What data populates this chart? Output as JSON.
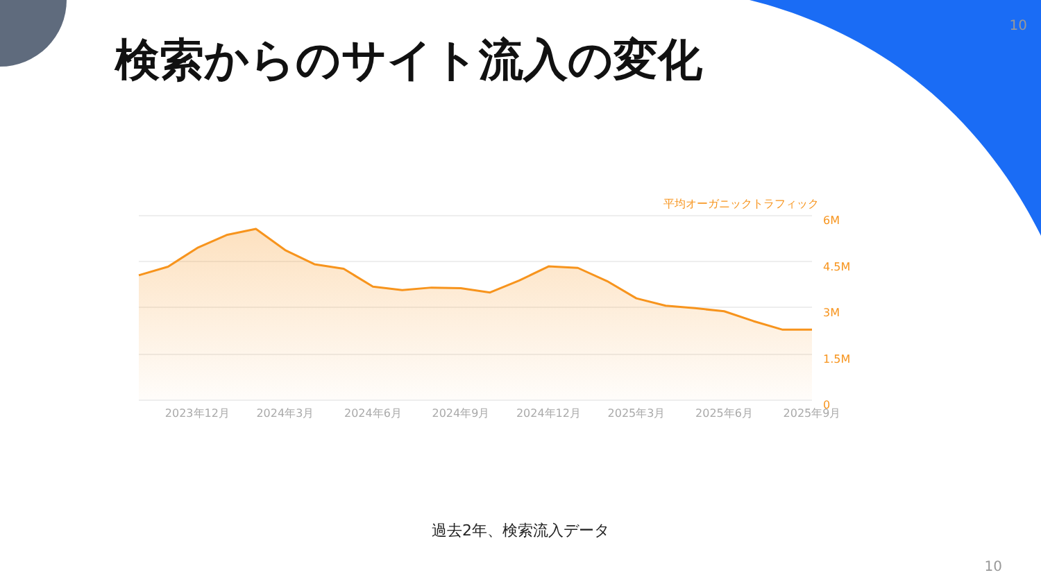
{
  "chart_data": {
    "type": "area",
    "title": "検索からのサイト流入の変化",
    "ylabel": "平均オーガニックトラフィック",
    "annotations": [
      "10",
      "過去2年、検索流入データ",
      "10"
    ],
    "categories": [
      null,
      null,
      "2023年12月",
      null,
      null,
      "2024年3月",
      null,
      null,
      "2024年6月",
      null,
      null,
      "2024年9月",
      null,
      null,
      "2024年12月",
      null,
      null,
      "2025年3月",
      null,
      null,
      "2025年6月",
      null,
      null,
      "2025年9月"
    ],
    "series": [
      {
        "color": "#f7941d",
        "values": [
          4.04,
          4.32,
          4.93,
          5.35,
          5.55,
          4.86,
          4.4,
          4.25,
          3.67,
          3.56,
          3.64,
          3.62,
          3.48,
          3.87,
          4.33,
          4.28,
          3.85,
          3.29,
          3.05,
          2.97,
          2.87,
          2.55,
          2.27,
          2.27
        ]
      }
    ],
    "ylim": [
      0,
      6
    ],
    "yticks": [
      {
        "value": 0,
        "label": "0"
      },
      {
        "value": 1.5,
        "label": "1.5M"
      },
      {
        "value": 3,
        "label": "3M"
      },
      {
        "value": 4.5,
        "label": "4.5M"
      },
      {
        "value": 6,
        "label": "6M"
      }
    ],
    "grid": "y",
    "marker": "none"
  }
}
